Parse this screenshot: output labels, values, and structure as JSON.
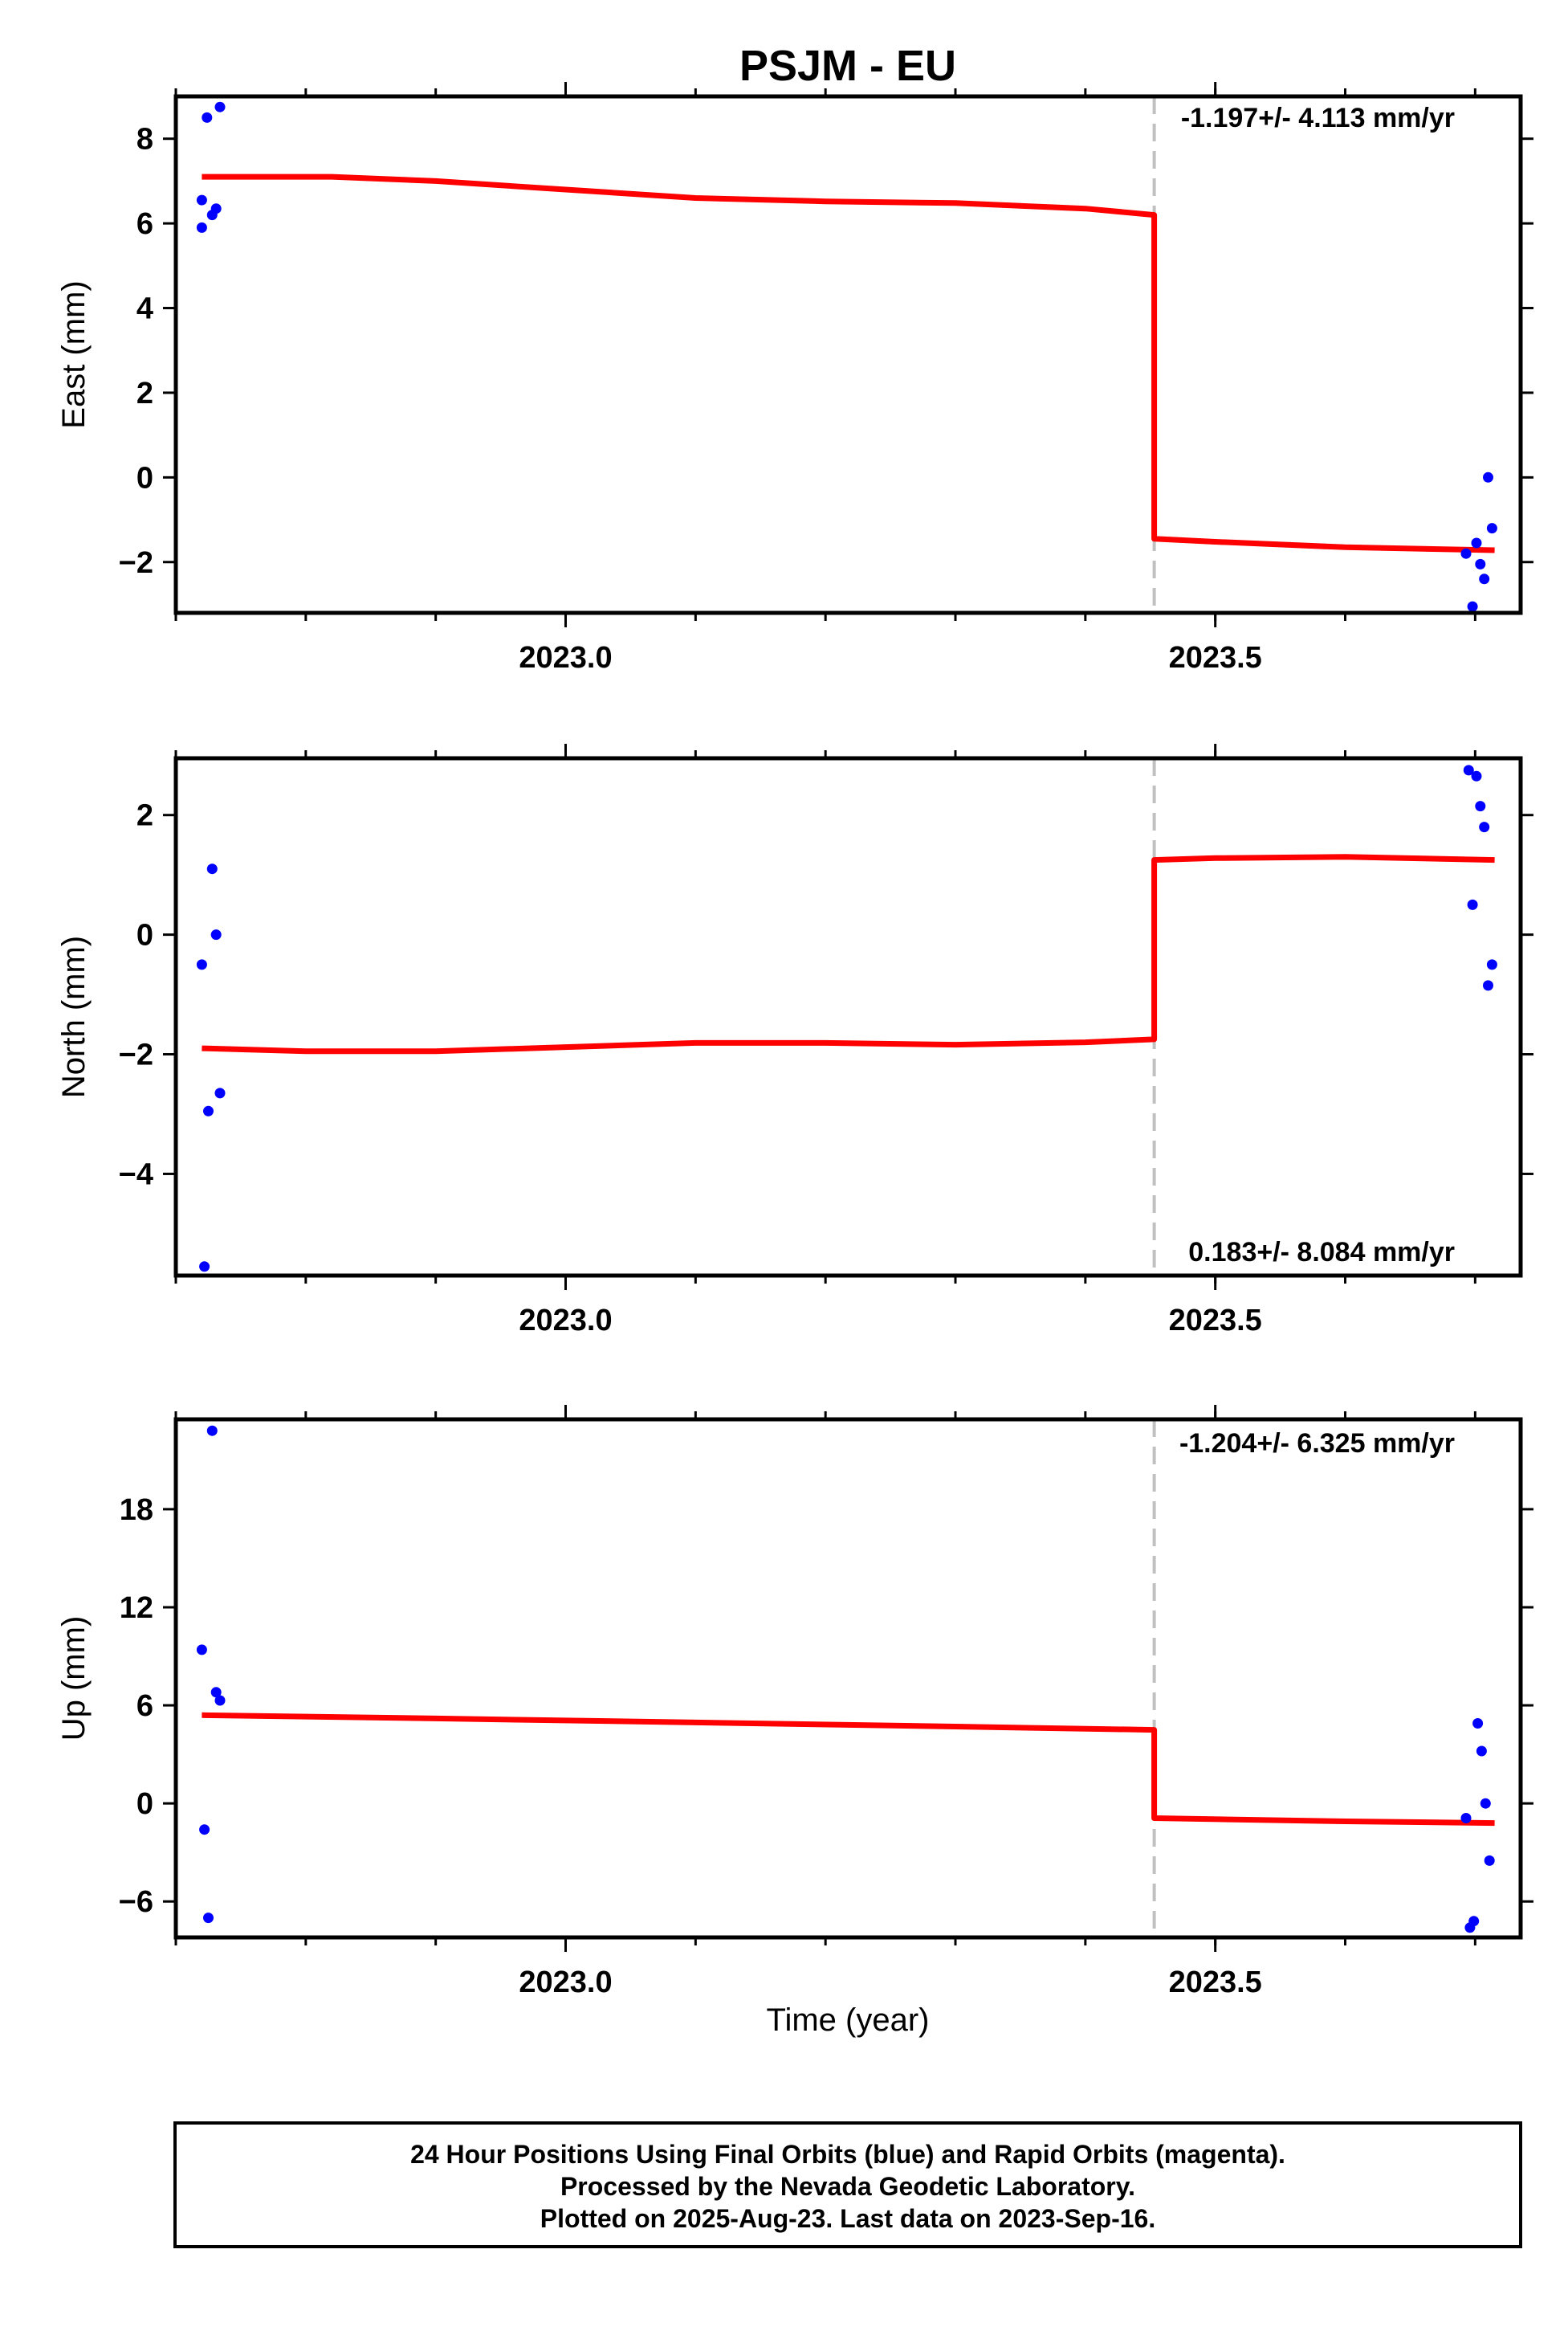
{
  "title": "PSJM - EU",
  "xlabel": "Time (year)",
  "footer": {
    "lines": [
      "24 Hour Positions Using Final Orbits (blue) and Rapid Orbits (magenta).",
      "Processed by the Nevada Geodetic Laboratory.",
      "Plotted on 2025-Aug-23. Last data on 2023-Sep-16."
    ]
  },
  "colors": {
    "data_points": "#0000ff",
    "model_line": "#ff0000",
    "break_line": "#c0c0c0",
    "frame": "#000000"
  },
  "chart_data": [
    {
      "type": "scatter",
      "ylabel": "East (mm)",
      "rate_label": "-1.197+/- 4.113 mm/yr",
      "xlim": [
        2022.7,
        2023.735
      ],
      "ylim": [
        -3.2,
        9.0
      ],
      "xticks": [
        "2023.0",
        "2023.5"
      ],
      "yticks": [
        -2,
        0,
        2,
        4,
        6,
        8
      ],
      "grid": false,
      "break_epoch": 2023.453,
      "points": [
        [
          2022.72,
          5.9
        ],
        [
          2022.72,
          6.55
        ],
        [
          2022.724,
          8.5
        ],
        [
          2022.728,
          6.2
        ],
        [
          2022.731,
          6.35
        ],
        [
          2022.734,
          8.75
        ],
        [
          2023.693,
          -1.8
        ],
        [
          2023.698,
          -3.05
        ],
        [
          2023.701,
          -1.55
        ],
        [
          2023.704,
          -2.05
        ],
        [
          2023.707,
          -2.4
        ],
        [
          2023.71,
          0.0
        ],
        [
          2023.713,
          -1.2
        ]
      ],
      "model": [
        [
          2022.72,
          7.1
        ],
        [
          2022.82,
          7.1
        ],
        [
          2022.9,
          7.0
        ],
        [
          2023.0,
          6.8
        ],
        [
          2023.1,
          6.6
        ],
        [
          2023.2,
          6.52
        ],
        [
          2023.3,
          6.48
        ],
        [
          2023.4,
          6.35
        ],
        [
          2023.453,
          6.2
        ],
        [
          2023.453,
          -1.45
        ],
        [
          2023.5,
          -1.52
        ],
        [
          2023.6,
          -1.65
        ],
        [
          2023.715,
          -1.72
        ]
      ]
    },
    {
      "type": "scatter",
      "ylabel": "North (mm)",
      "rate_label": "0.183+/- 8.084 mm/yr",
      "xlim": [
        2022.7,
        2023.735
      ],
      "ylim": [
        -5.7,
        2.95
      ],
      "xticks": [
        "2023.0",
        "2023.5"
      ],
      "yticks": [
        -4,
        -2,
        0,
        2
      ],
      "grid": false,
      "break_epoch": 2023.453,
      "points": [
        [
          2022.72,
          -0.5
        ],
        [
          2022.722,
          -5.55
        ],
        [
          2022.725,
          -2.95
        ],
        [
          2022.728,
          1.1
        ],
        [
          2022.731,
          0.0
        ],
        [
          2022.734,
          -2.65
        ],
        [
          2023.695,
          2.75
        ],
        [
          2023.698,
          0.5
        ],
        [
          2023.701,
          2.65
        ],
        [
          2023.704,
          2.15
        ],
        [
          2023.707,
          1.8
        ],
        [
          2023.71,
          -0.85
        ],
        [
          2023.713,
          -0.5
        ]
      ],
      "model": [
        [
          2022.72,
          -1.9
        ],
        [
          2022.8,
          -1.95
        ],
        [
          2022.9,
          -1.95
        ],
        [
          2023.0,
          -1.88
        ],
        [
          2023.1,
          -1.81
        ],
        [
          2023.2,
          -1.81
        ],
        [
          2023.3,
          -1.84
        ],
        [
          2023.4,
          -1.8
        ],
        [
          2023.453,
          -1.75
        ],
        [
          2023.453,
          1.25
        ],
        [
          2023.5,
          1.28
        ],
        [
          2023.6,
          1.3
        ],
        [
          2023.715,
          1.25
        ]
      ]
    },
    {
      "type": "scatter",
      "ylabel": "Up (mm)",
      "rate_label": "-1.204+/- 6.325 mm/yr",
      "xlim": [
        2022.7,
        2023.735
      ],
      "ylim": [
        -8.2,
        23.5
      ],
      "xticks": [
        "2023.0",
        "2023.5"
      ],
      "yticks": [
        -6,
        0,
        6,
        12,
        18
      ],
      "grid": false,
      "break_epoch": 2023.453,
      "points": [
        [
          2022.72,
          9.4
        ],
        [
          2022.722,
          -1.6
        ],
        [
          2022.725,
          -7.0
        ],
        [
          2022.728,
          22.8
        ],
        [
          2022.731,
          6.8
        ],
        [
          2022.734,
          6.3
        ],
        [
          2023.693,
          -0.9
        ],
        [
          2023.696,
          -7.6
        ],
        [
          2023.699,
          -7.2
        ],
        [
          2023.702,
          4.9
        ],
        [
          2023.705,
          3.2
        ],
        [
          2023.708,
          0.0
        ],
        [
          2023.711,
          -3.5
        ]
      ],
      "model": [
        [
          2022.72,
          5.4
        ],
        [
          2022.9,
          5.2
        ],
        [
          2023.1,
          4.95
        ],
        [
          2023.3,
          4.7
        ],
        [
          2023.453,
          4.5
        ],
        [
          2023.453,
          -0.9
        ],
        [
          2023.6,
          -1.1
        ],
        [
          2023.715,
          -1.2
        ]
      ]
    }
  ]
}
